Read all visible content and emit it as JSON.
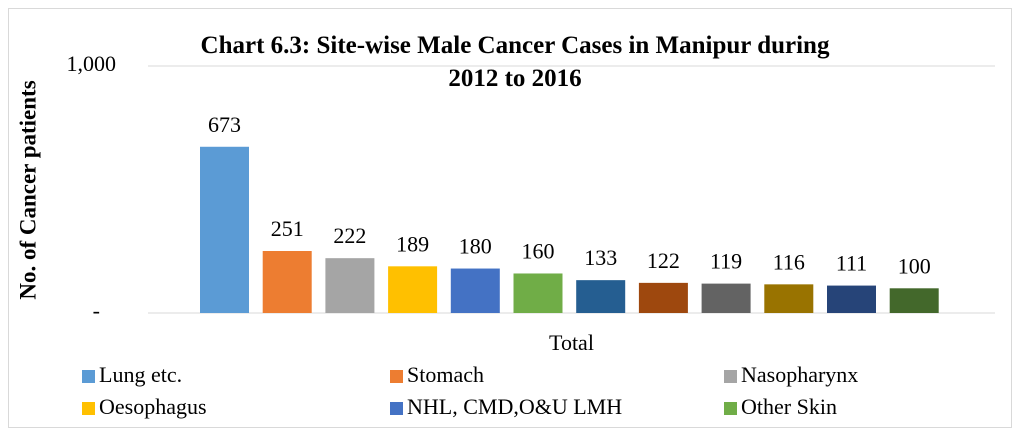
{
  "chart_data": {
    "type": "bar",
    "title": "Chart 6.3: Site-wise Male Cancer Cases in Manipur during 2012 to 2016",
    "y_label": "No. of Cancer patients",
    "categories": [
      "Total"
    ],
    "series": [
      {
        "name": "Lung etc.",
        "color": "#5b9bd5",
        "values": [
          673
        ]
      },
      {
        "name": "Stomach",
        "color": "#ed7d31",
        "values": [
          251
        ]
      },
      {
        "name": "Nasopharynx",
        "color": "#a5a5a5",
        "values": [
          222
        ]
      },
      {
        "name": "Oesophagus",
        "color": "#ffc000",
        "values": [
          189
        ]
      },
      {
        "name": "NHL, CMD,O&U LMH",
        "color": "#4472c4",
        "values": [
          180
        ]
      },
      {
        "name": "Other Skin",
        "color": "#70ad47",
        "values": [
          160
        ]
      },
      {
        "color": "#255e91",
        "values": [
          133
        ]
      },
      {
        "color": "#9e480e",
        "values": [
          122
        ]
      },
      {
        "color": "#636363",
        "values": [
          119
        ]
      },
      {
        "color": "#997300",
        "values": [
          116
        ]
      },
      {
        "color": "#264478",
        "values": [
          111
        ]
      },
      {
        "color": "#43682b",
        "values": [
          100
        ]
      }
    ],
    "ylim": [
      0,
      1000
    ],
    "yticks": [
      {
        "value": 0,
        "label": "-"
      },
      {
        "value": 1000,
        "label": "1,000"
      }
    ],
    "grid": true
  }
}
